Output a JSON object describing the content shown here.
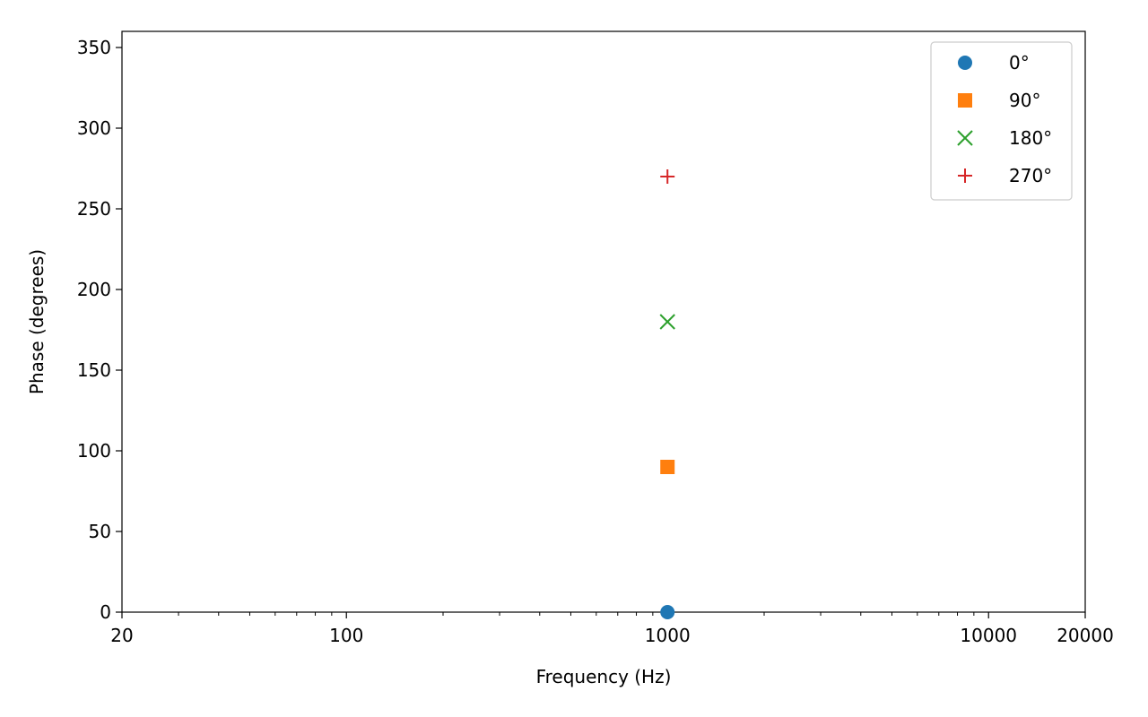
{
  "chart_data": {
    "type": "scatter",
    "title": "",
    "xlabel": "Frequency (Hz)",
    "ylabel": "Phase (degrees)",
    "xscale": "log",
    "xlim": [
      20,
      20000
    ],
    "ylim": [
      0,
      360
    ],
    "grid": false,
    "legend_location": "top-right",
    "x_ticks": [
      {
        "value": 20,
        "label": "20"
      },
      {
        "value": 100,
        "label": "100"
      },
      {
        "value": 1000,
        "label": "1000"
      },
      {
        "value": 10000,
        "label": "10000"
      },
      {
        "value": 20000,
        "label": "20000"
      }
    ],
    "y_ticks": [
      {
        "value": 0,
        "label": "0"
      },
      {
        "value": 50,
        "label": "50"
      },
      {
        "value": 100,
        "label": "100"
      },
      {
        "value": 150,
        "label": "150"
      },
      {
        "value": 200,
        "label": "200"
      },
      {
        "value": 250,
        "label": "250"
      },
      {
        "value": 300,
        "label": "300"
      },
      {
        "value": 350,
        "label": "350"
      }
    ],
    "series": [
      {
        "name": "0°",
        "marker": "circle",
        "color": "#1f77b4",
        "points": [
          {
            "x": 1000,
            "y": 0
          }
        ]
      },
      {
        "name": "90°",
        "marker": "square",
        "color": "#ff7f0e",
        "points": [
          {
            "x": 1000,
            "y": 90
          }
        ]
      },
      {
        "name": "180°",
        "marker": "x",
        "color": "#2ca02c",
        "points": [
          {
            "x": 1000,
            "y": 180
          }
        ]
      },
      {
        "name": "270°",
        "marker": "plus",
        "color": "#d62728",
        "points": [
          {
            "x": 1000,
            "y": 270
          }
        ]
      }
    ]
  }
}
